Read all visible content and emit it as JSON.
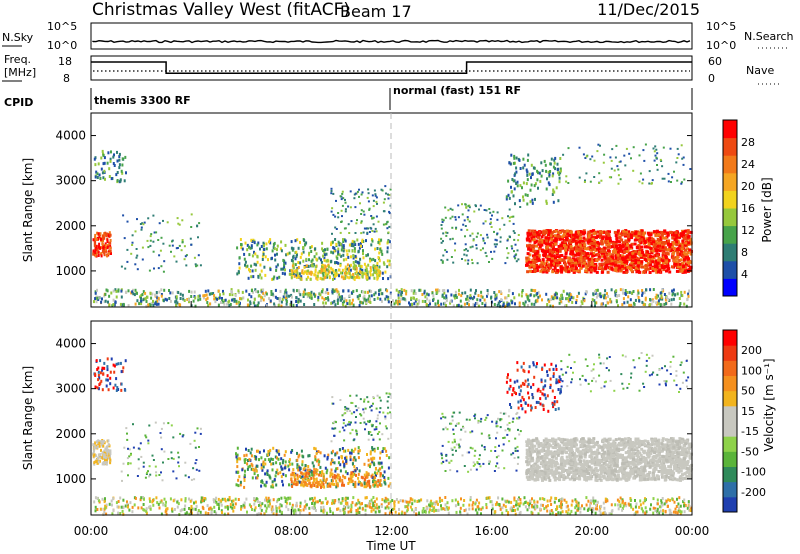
{
  "header": {
    "title": "Christmas Valley West (fitACF)",
    "beam": "Beam 17",
    "date": "11/Dec/2015"
  },
  "colors": {
    "power_scale": [
      "#0000ff",
      "#1e4fa8",
      "#2e7d74",
      "#47a34a",
      "#96c83c",
      "#f2d31e",
      "#f5a623",
      "#f27a1a",
      "#ee4a12",
      "#ff0000"
    ],
    "velocity_scale": [
      "#1f3fb0",
      "#2e6fa8",
      "#2f8a5a",
      "#5ab43a",
      "#8ed24a",
      "#c8c8c0",
      "#c8c8c0",
      "#f2b41e",
      "#f5901e",
      "#f26a1a",
      "#ee3a12",
      "#ff0000"
    ]
  },
  "chart_data": [
    {
      "type": "line",
      "name": "noise-panel",
      "left_label": "N.Sky",
      "right_label": "N.Search",
      "y_ticks_left": [
        "10^5",
        "10^0"
      ],
      "y_ticks_right": [
        "10^5",
        "10^0"
      ]
    },
    {
      "type": "line",
      "name": "frequency-panel",
      "left_label": [
        "Freq.",
        "[MHz]"
      ],
      "right_label": "Nave",
      "y_ticks_left": [
        "18",
        "8"
      ],
      "y_ticks_right": [
        "60",
        "0"
      ],
      "x": [
        "00:00",
        "03:00",
        "03:00",
        "15:00",
        "15:00",
        "24:00"
      ],
      "freq_mhz": [
        15.5,
        15.5,
        10.8,
        10.8,
        15.5,
        15.5
      ]
    },
    {
      "type": "table",
      "name": "cpid-panel",
      "label": "CPID",
      "segments": [
        {
          "start": "00:00",
          "label": "themis 3300 RF"
        },
        {
          "start": "12:00",
          "label": "normal (fast) 151 RF"
        }
      ]
    },
    {
      "type": "heatmap",
      "name": "power",
      "ylabel": "Slant Range [km]",
      "ylim": [
        200,
        4500
      ],
      "y_ticks": [
        1000,
        2000,
        3000,
        4000
      ],
      "colorbar_label": "Power [dB]",
      "colorbar_ticks": [
        "4",
        "8",
        "12",
        "16",
        "20",
        "24",
        "28"
      ]
    },
    {
      "type": "heatmap",
      "name": "velocity",
      "ylabel": "Slant Range [km]",
      "xlabel": "Time UT",
      "ylim": [
        200,
        4500
      ],
      "y_ticks": [
        1000,
        2000,
        3000,
        4000
      ],
      "x_ticks": [
        "00:00",
        "04:00",
        "08:00",
        "12:00",
        "16:00",
        "20:00",
        "00:00"
      ],
      "colorbar_label": "Velocity [m s⁻¹]",
      "colorbar_ticks": [
        "200",
        "100",
        "50",
        "15",
        "-15",
        "-50",
        "-100",
        "-200"
      ]
    }
  ]
}
